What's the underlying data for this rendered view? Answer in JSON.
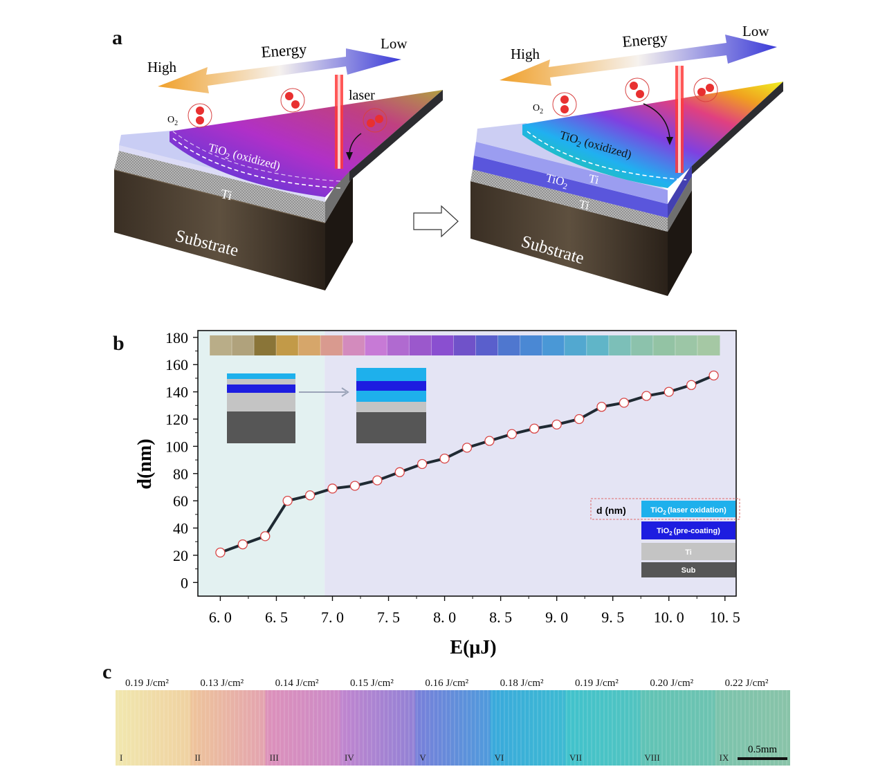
{
  "panels": {
    "a": "a",
    "b": "b",
    "c": "c"
  },
  "panel_a": {
    "left": {
      "high": "High",
      "energy": "Energy",
      "low": "Low",
      "laser": "laser",
      "o2": "O",
      "o2_sub": "2",
      "tio2": "TiO",
      "tio2_sub": "2",
      "oxidized": " (oxidized)",
      "ti": "Ti",
      "substrate": "Substrate"
    },
    "right": {
      "high": "High",
      "energy": "Energy",
      "low": "Low",
      "o2": "O",
      "o2_sub": "2",
      "tio2": "TiO",
      "tio2_sub": "2",
      "oxidized": " (oxidized)",
      "ti_upper": "Ti",
      "tio2_pre": "TiO",
      "tio2_pre_sub": "2",
      "ti_lower": "Ti",
      "substrate": "Substrate"
    }
  },
  "chart_data": {
    "type": "line",
    "title": "",
    "xlabel": "E(μJ)",
    "ylabel": "d(nm)",
    "xlim": [
      5.8,
      10.6
    ],
    "ylim": [
      -10,
      185
    ],
    "xticks": [
      "6.0",
      "6.5",
      "7.0",
      "7.5",
      "8.0",
      "8.5",
      "9.0",
      "9.5",
      "10.0",
      "10.5"
    ],
    "yticks": [
      "0",
      "20",
      "40",
      "60",
      "80",
      "100",
      "120",
      "140",
      "160",
      "180"
    ],
    "x": [
      6.0,
      6.2,
      6.4,
      6.6,
      6.8,
      7.0,
      7.2,
      7.4,
      7.6,
      7.8,
      8.0,
      8.2,
      8.4,
      8.6,
      8.8,
      9.0,
      9.2,
      9.4,
      9.6,
      9.8,
      10.0,
      10.2,
      10.4
    ],
    "y": [
      22,
      28,
      34,
      60,
      64,
      69,
      71,
      75,
      81,
      87,
      91,
      99,
      104,
      109,
      113,
      116,
      120,
      129,
      132,
      137,
      140,
      145,
      152
    ],
    "region_split_x": 6.93,
    "region_colors": [
      "#e3f1f1",
      "#e4e4f4"
    ],
    "line_color": "#1f2a33",
    "marker_edge": "#d84545",
    "swatch_colors": [
      "#b9ad88",
      "#b0a27c",
      "#8a7538",
      "#c29a48",
      "#d6a66a",
      "#d99a8f",
      "#d38bbd",
      "#c77ad6",
      "#b06ad0",
      "#9b58cc",
      "#8a4fd0",
      "#7052c9",
      "#5a5fcc",
      "#4f77cf",
      "#4a88d4",
      "#4a98d6",
      "#52a8d0",
      "#60b5c8",
      "#7cbfb8",
      "#8cc2ac",
      "#93c3a4",
      "#9cc6a6",
      "#a5c8a4"
    ],
    "legend": {
      "d_label": "d (nm)",
      "items": [
        {
          "label": "TiO",
          "sub": "2",
          "rest": "(laser oxidation)",
          "color": "#1eb0ec"
        },
        {
          "label": "TiO",
          "sub": "2",
          "rest": "(pre-coating)",
          "color": "#1d1de0"
        },
        {
          "label": "Ti",
          "sub": "",
          "rest": "",
          "color": "#c4c4c4"
        },
        {
          "label": "Sub",
          "sub": "",
          "rest": "",
          "color": "#565656"
        }
      ]
    }
  },
  "panel_c": {
    "fluences": [
      "0.19 J/cm²",
      "0.13 J/cm²",
      "0.14 J/cm²",
      "0.15 J/cm²",
      "0.16 J/cm²",
      "0.18 J/cm²",
      "0.19 J/cm²",
      "0.20 J/cm²",
      "0.22 J/cm²"
    ],
    "numerals": [
      "I",
      "II",
      "III",
      "IV",
      "V",
      "VI",
      "VII",
      "VIII",
      "IX"
    ],
    "colors": [
      "#f1e7ae",
      "#efc59a",
      "#de92ba",
      "#c286cf",
      "#7a7fd9",
      "#3aa8dd",
      "#40c2cd",
      "#63c4b4",
      "#89c4a8"
    ],
    "scale_bar": "0.5mm"
  }
}
